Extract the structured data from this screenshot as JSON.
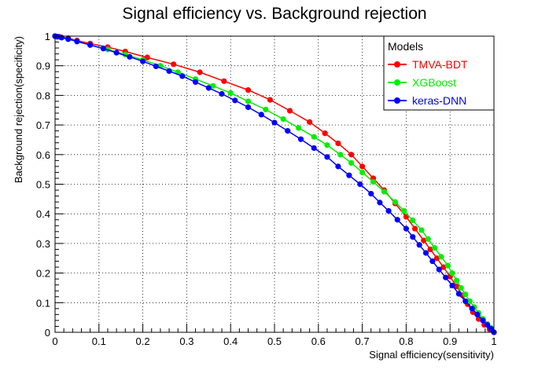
{
  "chart_data": {
    "type": "line",
    "title": "Signal efficiency vs. Background rejection",
    "xlabel": "Signal efficiency(sensitivity)",
    "ylabel": "Background rejection(specificity)",
    "xlim": [
      0,
      1
    ],
    "ylim": [
      0,
      1
    ],
    "x_ticks": [
      "0",
      "0.1",
      "0.2",
      "0.3",
      "0.4",
      "0.5",
      "0.6",
      "0.7",
      "0.8",
      "0.9",
      "1"
    ],
    "y_ticks": [
      "0",
      "0.1",
      "0.2",
      "0.3",
      "0.4",
      "0.5",
      "0.6",
      "0.7",
      "0.8",
      "0.9",
      "1"
    ],
    "grid": true,
    "legend": {
      "title": "Models",
      "position": "top-right"
    },
    "series": [
      {
        "name": "TMVA-BDT",
        "color": "#ff0000",
        "points": [
          [
            0,
            1
          ],
          [
            0.01,
            0.998
          ],
          [
            0.03,
            0.993
          ],
          [
            0.05,
            0.985
          ],
          [
            0.08,
            0.975
          ],
          [
            0.12,
            0.963
          ],
          [
            0.16,
            0.948
          ],
          [
            0.21,
            0.928
          ],
          [
            0.27,
            0.905
          ],
          [
            0.33,
            0.878
          ],
          [
            0.385,
            0.848
          ],
          [
            0.44,
            0.818
          ],
          [
            0.49,
            0.785
          ],
          [
            0.535,
            0.748
          ],
          [
            0.58,
            0.71
          ],
          [
            0.615,
            0.672
          ],
          [
            0.645,
            0.638
          ],
          [
            0.675,
            0.6
          ],
          [
            0.7,
            0.56
          ],
          [
            0.725,
            0.52
          ],
          [
            0.75,
            0.48
          ],
          [
            0.775,
            0.435
          ],
          [
            0.8,
            0.39
          ],
          [
            0.82,
            0.35
          ],
          [
            0.84,
            0.31
          ],
          [
            0.855,
            0.28
          ],
          [
            0.87,
            0.25
          ],
          [
            0.885,
            0.22
          ],
          [
            0.9,
            0.188
          ],
          [
            0.915,
            0.155
          ],
          [
            0.928,
            0.125
          ],
          [
            0.94,
            0.095
          ],
          [
            0.952,
            0.068
          ],
          [
            0.965,
            0.045
          ],
          [
            0.978,
            0.025
          ],
          [
            0.99,
            0.01
          ],
          [
            1,
            0
          ]
        ]
      },
      {
        "name": "XGBoost",
        "color": "#00ee00",
        "points": [
          [
            0,
            1
          ],
          [
            0.005,
            0.998
          ],
          [
            0.015,
            0.995
          ],
          [
            0.03,
            0.99
          ],
          [
            0.05,
            0.982
          ],
          [
            0.08,
            0.97
          ],
          [
            0.12,
            0.955
          ],
          [
            0.16,
            0.938
          ],
          [
            0.2,
            0.92
          ],
          [
            0.24,
            0.9
          ],
          [
            0.28,
            0.878
          ],
          [
            0.32,
            0.855
          ],
          [
            0.36,
            0.832
          ],
          [
            0.4,
            0.808
          ],
          [
            0.44,
            0.78
          ],
          [
            0.48,
            0.752
          ],
          [
            0.52,
            0.72
          ],
          [
            0.555,
            0.69
          ],
          [
            0.59,
            0.66
          ],
          [
            0.62,
            0.632
          ],
          [
            0.65,
            0.6
          ],
          [
            0.675,
            0.572
          ],
          [
            0.7,
            0.54
          ],
          [
            0.725,
            0.508
          ],
          [
            0.75,
            0.475
          ],
          [
            0.775,
            0.44
          ],
          [
            0.795,
            0.41
          ],
          [
            0.815,
            0.378
          ],
          [
            0.835,
            0.345
          ],
          [
            0.85,
            0.315
          ],
          [
            0.865,
            0.285
          ],
          [
            0.88,
            0.255
          ],
          [
            0.895,
            0.225
          ],
          [
            0.905,
            0.2
          ],
          [
            0.915,
            0.175
          ],
          [
            0.925,
            0.15
          ],
          [
            0.935,
            0.128
          ],
          [
            0.945,
            0.105
          ],
          [
            0.955,
            0.085
          ],
          [
            0.965,
            0.065
          ],
          [
            0.975,
            0.045
          ],
          [
            0.985,
            0.028
          ],
          [
            0.993,
            0.015
          ],
          [
            1,
            0
          ]
        ]
      },
      {
        "name": "keras-DNN",
        "color": "#0000ff",
        "points": [
          [
            0,
            1
          ],
          [
            0.005,
            0.998
          ],
          [
            0.015,
            0.995
          ],
          [
            0.03,
            0.99
          ],
          [
            0.05,
            0.982
          ],
          [
            0.08,
            0.97
          ],
          [
            0.11,
            0.958
          ],
          [
            0.14,
            0.944
          ],
          [
            0.17,
            0.93
          ],
          [
            0.2,
            0.915
          ],
          [
            0.23,
            0.898
          ],
          [
            0.26,
            0.882
          ],
          [
            0.29,
            0.865
          ],
          [
            0.32,
            0.845
          ],
          [
            0.35,
            0.825
          ],
          [
            0.38,
            0.805
          ],
          [
            0.41,
            0.783
          ],
          [
            0.44,
            0.76
          ],
          [
            0.47,
            0.735
          ],
          [
            0.5,
            0.708
          ],
          [
            0.53,
            0.68
          ],
          [
            0.56,
            0.652
          ],
          [
            0.59,
            0.622
          ],
          [
            0.62,
            0.592
          ],
          [
            0.645,
            0.56
          ],
          [
            0.67,
            0.53
          ],
          [
            0.695,
            0.5
          ],
          [
            0.72,
            0.468
          ],
          [
            0.74,
            0.438
          ],
          [
            0.76,
            0.41
          ],
          [
            0.78,
            0.38
          ],
          [
            0.8,
            0.35
          ],
          [
            0.815,
            0.322
          ],
          [
            0.83,
            0.295
          ],
          [
            0.845,
            0.268
          ],
          [
            0.86,
            0.24
          ],
          [
            0.875,
            0.212
          ],
          [
            0.89,
            0.185
          ],
          [
            0.905,
            0.158
          ],
          [
            0.92,
            0.13
          ],
          [
            0.935,
            0.105
          ],
          [
            0.95,
            0.08
          ],
          [
            0.962,
            0.06
          ],
          [
            0.975,
            0.04
          ],
          [
            0.985,
            0.025
          ],
          [
            0.993,
            0.012
          ],
          [
            1,
            0
          ]
        ]
      }
    ]
  }
}
